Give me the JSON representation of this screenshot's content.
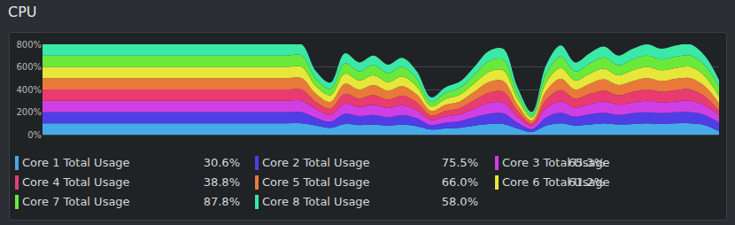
{
  "chart_data": {
    "type": "area",
    "title": "CPU",
    "stacked": true,
    "grid": true,
    "legend": "bottom",
    "tick_labels": "y",
    "x": [
      0,
      1,
      2,
      3,
      4,
      5,
      6,
      7,
      8,
      9,
      10,
      11,
      12,
      13,
      14,
      15,
      16,
      17,
      18,
      19,
      20,
      21,
      22,
      23,
      24,
      25,
      26,
      27,
      28,
      29,
      30,
      31,
      32,
      33,
      34,
      35,
      36,
      37,
      38,
      39,
      40,
      41,
      42,
      43,
      44,
      45,
      46,
      47
    ],
    "xlim": [
      0,
      47
    ],
    "xticks": [],
    "ylim": [
      0,
      800
    ],
    "yticks": [
      {
        "value": 0,
        "label": "0%"
      },
      {
        "value": 200,
        "label": "200%"
      },
      {
        "value": 400,
        "label": "400%"
      },
      {
        "value": 600,
        "label": "600%"
      },
      {
        "value": 800,
        "label": "800%"
      }
    ],
    "series": [
      {
        "name": "Core 1 Total Usage",
        "color": "#46a9e8",
        "current_label": "30.6%",
        "values": [
          100,
          100,
          100,
          100,
          100,
          100,
          100,
          100,
          100,
          100,
          100,
          100,
          100,
          100,
          100,
          100,
          100,
          100,
          100,
          80,
          60,
          95,
          85,
          90,
          80,
          90,
          75,
          45,
          55,
          60,
          80,
          95,
          95,
          55,
          25,
          80,
          100,
          80,
          90,
          100,
          90,
          95,
          100,
          95,
          100,
          100,
          85,
          30.6
        ]
      },
      {
        "name": "Core 2 Total Usage",
        "color": "#4f3ee6",
        "current_label": "75.5%",
        "values": [
          100,
          100,
          100,
          100,
          100,
          100,
          100,
          100,
          100,
          100,
          100,
          100,
          100,
          100,
          100,
          100,
          100,
          100,
          100,
          70,
          55,
          90,
          80,
          85,
          75,
          85,
          70,
          40,
          50,
          60,
          75,
          90,
          95,
          50,
          25,
          75,
          95,
          80,
          90,
          95,
          85,
          95,
          100,
          95,
          100,
          100,
          90,
          75.5
        ]
      },
      {
        "name": "Core 3 Total Usage",
        "color": "#d03fe4",
        "current_label": "65.3%",
        "values": [
          100,
          100,
          100,
          100,
          100,
          100,
          100,
          100,
          100,
          100,
          100,
          100,
          100,
          100,
          100,
          100,
          100,
          100,
          100,
          75,
          60,
          90,
          80,
          90,
          80,
          85,
          70,
          45,
          55,
          60,
          75,
          95,
          95,
          55,
          25,
          80,
          100,
          80,
          90,
          100,
          90,
          95,
          100,
          95,
          95,
          100,
          85,
          65.3
        ]
      },
      {
        "name": "Core 4 Total Usage",
        "color": "#e83b70",
        "current_label": "38.8%",
        "values": [
          100,
          100,
          100,
          100,
          100,
          100,
          100,
          100,
          100,
          100,
          100,
          100,
          100,
          100,
          100,
          100,
          100,
          100,
          100,
          65,
          55,
          85,
          75,
          85,
          75,
          85,
          70,
          40,
          50,
          55,
          75,
          90,
          95,
          50,
          25,
          75,
          100,
          80,
          90,
          95,
          85,
          95,
          100,
          95,
          100,
          100,
          80,
          38.8
        ]
      },
      {
        "name": "Core 5 Total Usage",
        "color": "#e9793b",
        "current_label": "66.0%",
        "values": [
          100,
          100,
          100,
          100,
          100,
          100,
          100,
          100,
          100,
          100,
          100,
          100,
          100,
          100,
          100,
          100,
          100,
          100,
          100,
          70,
          60,
          90,
          80,
          90,
          80,
          85,
          70,
          40,
          55,
          60,
          75,
          95,
          95,
          55,
          25,
          80,
          100,
          80,
          90,
          100,
          90,
          95,
          100,
          95,
          100,
          100,
          90,
          66.0
        ]
      },
      {
        "name": "Core 6 Total Usage",
        "color": "#e6e63b",
        "current_label": "61.2%",
        "values": [
          100,
          100,
          100,
          100,
          100,
          100,
          100,
          100,
          100,
          100,
          100,
          100,
          100,
          100,
          100,
          100,
          100,
          100,
          100,
          70,
          60,
          90,
          80,
          85,
          75,
          85,
          70,
          40,
          50,
          60,
          75,
          90,
          95,
          50,
          25,
          75,
          95,
          80,
          90,
          95,
          85,
          95,
          100,
          95,
          95,
          100,
          90,
          61.2
        ]
      },
      {
        "name": "Core 7 Total Usage",
        "color": "#6ae93b",
        "current_label": "87.8%",
        "values": [
          100,
          100,
          100,
          100,
          100,
          100,
          100,
          100,
          100,
          100,
          100,
          100,
          100,
          100,
          100,
          100,
          100,
          100,
          100,
          65,
          55,
          90,
          80,
          90,
          80,
          85,
          70,
          40,
          55,
          60,
          75,
          95,
          95,
          55,
          25,
          80,
          100,
          80,
          90,
          100,
          90,
          95,
          100,
          95,
          100,
          100,
          95,
          87.8
        ]
      },
      {
        "name": "Core 8 Total Usage",
        "color": "#3be8a6",
        "current_label": "58.0%",
        "values": [
          100,
          100,
          100,
          100,
          100,
          100,
          100,
          100,
          100,
          100,
          100,
          100,
          100,
          100,
          100,
          100,
          100,
          100,
          100,
          65,
          55,
          90,
          80,
          85,
          75,
          80,
          65,
          40,
          50,
          55,
          70,
          90,
          95,
          50,
          25,
          75,
          100,
          80,
          90,
          95,
          85,
          95,
          100,
          95,
          100,
          100,
          85,
          58.0
        ]
      }
    ]
  }
}
